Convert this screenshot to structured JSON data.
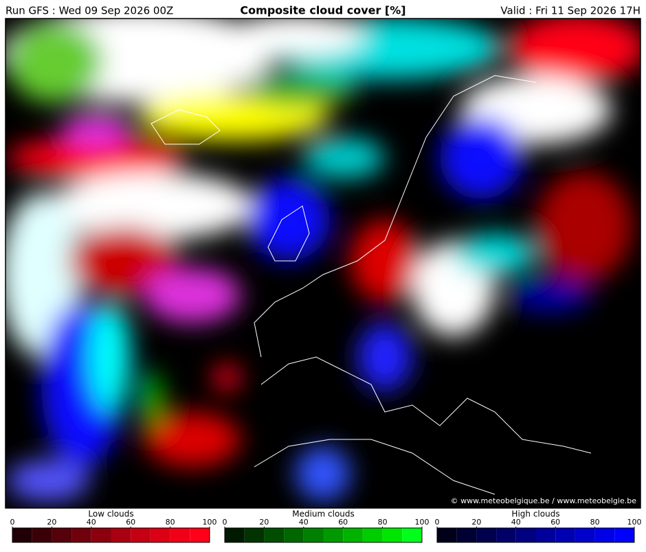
{
  "header": {
    "run": "Run GFS : Wed 09 Sep 2026 00Z",
    "title": "Composite cloud cover [%]",
    "valid": "Valid : Fri 11 Sep 2026 17H"
  },
  "credit": "© www.meteobelgique.be / www.meteobelgie.be",
  "legends": [
    {
      "label": "Low clouds",
      "ticks": [
        0,
        20,
        40,
        60,
        80,
        100
      ],
      "colors": [
        "#200006",
        "#3a0008",
        "#55000a",
        "#70000c",
        "#8c000e",
        "#a80010",
        "#c40012",
        "#dc0014",
        "#f00016",
        "#ff0018"
      ]
    },
    {
      "label": "Medium clouds",
      "ticks": [
        0,
        20,
        40,
        60,
        80,
        100
      ],
      "colors": [
        "#001a00",
        "#003300",
        "#004d00",
        "#006600",
        "#008000",
        "#009a00",
        "#00b300",
        "#00cd00",
        "#00e600",
        "#00ff1a"
      ]
    },
    {
      "label": "High clouds",
      "ticks": [
        0,
        20,
        40,
        60,
        80,
        100
      ],
      "colors": [
        "#00001a",
        "#000033",
        "#00004d",
        "#000066",
        "#000080",
        "#00009a",
        "#0000b3",
        "#0000cd",
        "#0000e6",
        "#0000ff"
      ]
    }
  ]
}
